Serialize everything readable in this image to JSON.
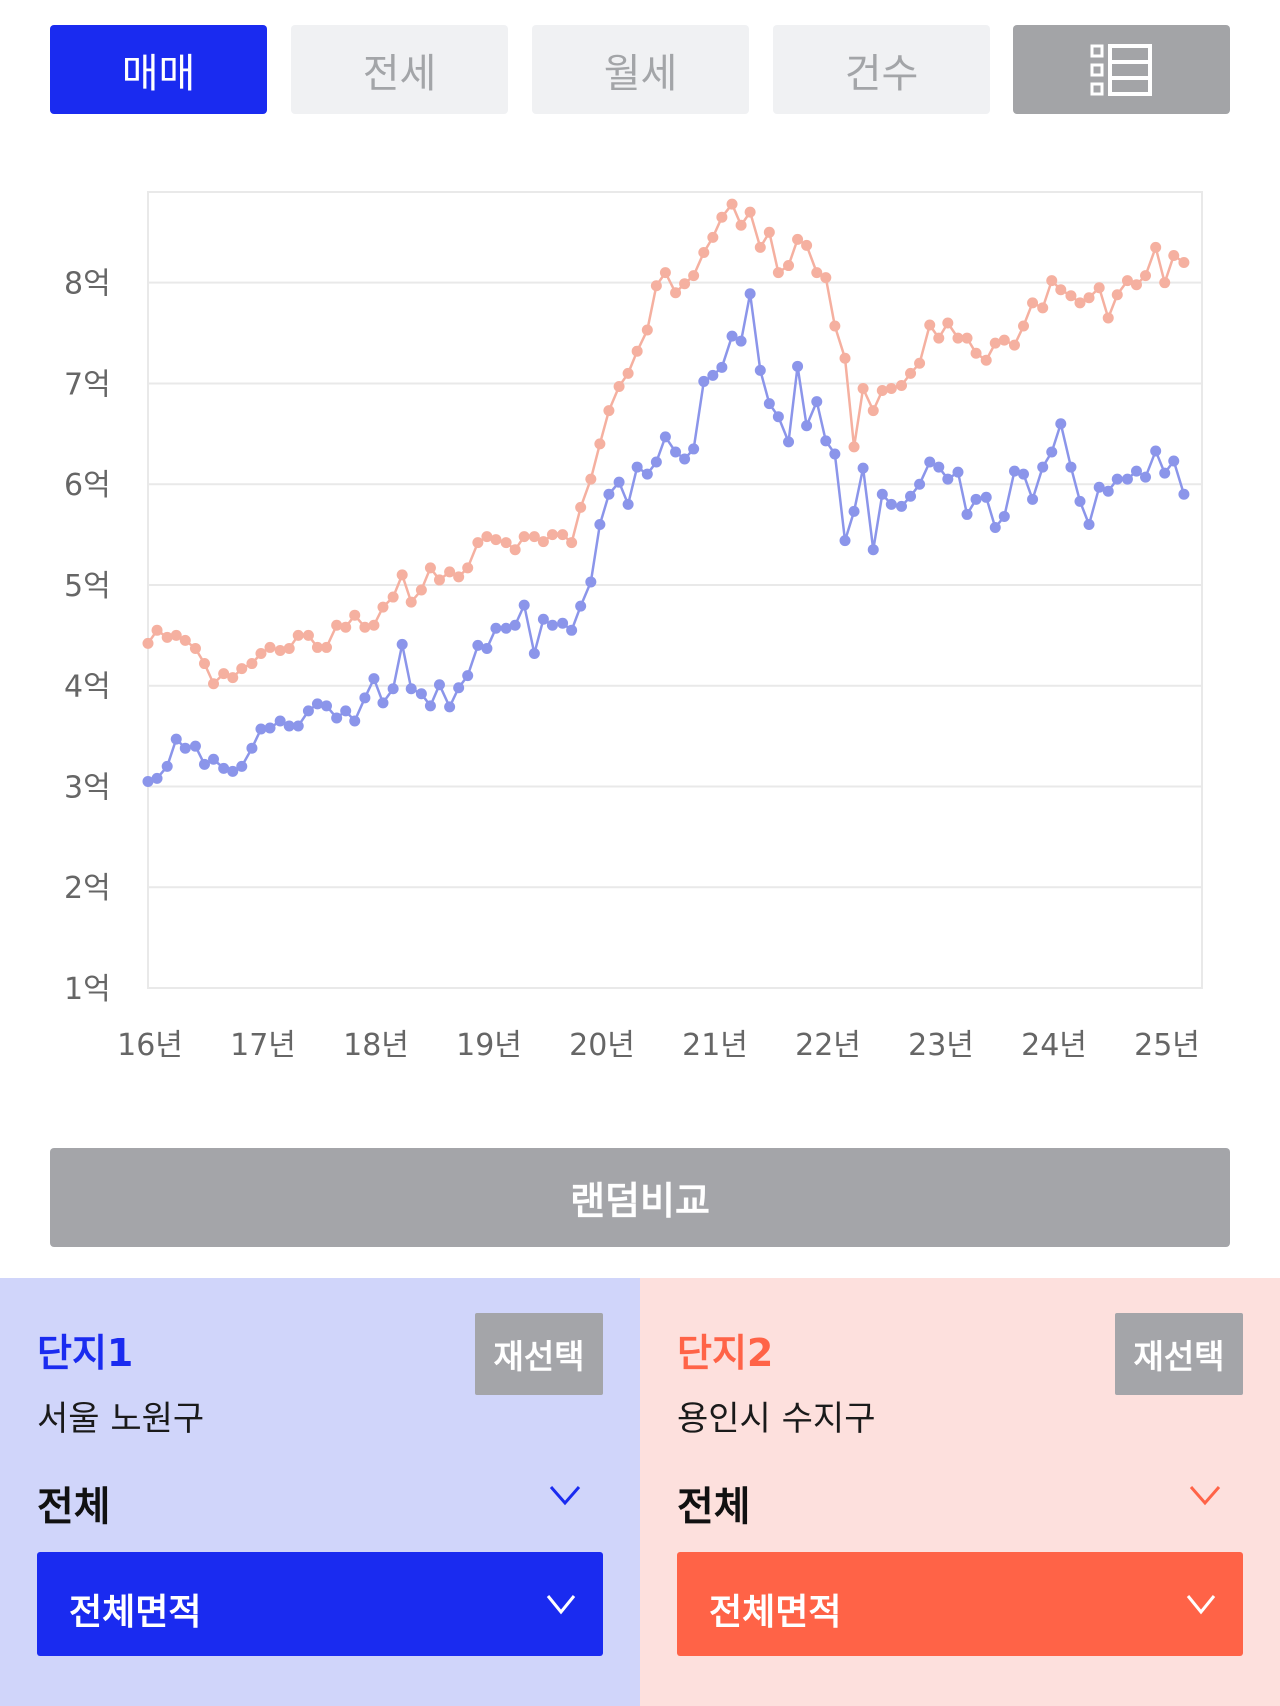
{
  "tabs": [
    {
      "label": "매매",
      "active": true
    },
    {
      "label": "전세",
      "active": false
    },
    {
      "label": "월세",
      "active": false
    },
    {
      "label": "건수",
      "active": false
    }
  ],
  "menu_icon": "list-view-icon",
  "colors": {
    "accent_blue": "#1a2bf0",
    "accent_red": "#ff6347",
    "series1_line": "#8b95ea",
    "series2_line": "#f5b0a0"
  },
  "chart_data": {
    "type": "line",
    "title": "",
    "xlabel": "",
    "ylabel": "",
    "x_tick_labels": [
      "16년",
      "17년",
      "18년",
      "19년",
      "20년",
      "21년",
      "22년",
      "23년",
      "24년",
      "25년"
    ],
    "y_tick_labels": [
      "1억",
      "2억",
      "3억",
      "4억",
      "5억",
      "6억",
      "7억",
      "8억"
    ],
    "ylim": [
      1,
      8.9
    ],
    "xlim": [
      2016.0,
      2025.33
    ],
    "grid": true,
    "legend": "none",
    "series": [
      {
        "color": "#8b95ea",
        "points": [
          [
            2016.0,
            3.05
          ],
          [
            2016.08,
            3.08
          ],
          [
            2016.17,
            3.2
          ],
          [
            2016.25,
            3.47
          ],
          [
            2016.33,
            3.38
          ],
          [
            2016.42,
            3.4
          ],
          [
            2016.5,
            3.22
          ],
          [
            2016.58,
            3.27
          ],
          [
            2016.67,
            3.18
          ],
          [
            2016.75,
            3.15
          ],
          [
            2016.83,
            3.2
          ],
          [
            2016.92,
            3.38
          ],
          [
            2017.0,
            3.57
          ],
          [
            2017.08,
            3.58
          ],
          [
            2017.17,
            3.65
          ],
          [
            2017.25,
            3.6
          ],
          [
            2017.33,
            3.6
          ],
          [
            2017.42,
            3.75
          ],
          [
            2017.5,
            3.82
          ],
          [
            2017.58,
            3.8
          ],
          [
            2017.67,
            3.68
          ],
          [
            2017.75,
            3.75
          ],
          [
            2017.83,
            3.65
          ],
          [
            2017.92,
            3.88
          ],
          [
            2018.0,
            4.07
          ],
          [
            2018.08,
            3.83
          ],
          [
            2018.17,
            3.97
          ],
          [
            2018.25,
            4.41
          ],
          [
            2018.33,
            3.97
          ],
          [
            2018.42,
            3.92
          ],
          [
            2018.5,
            3.8
          ],
          [
            2018.58,
            4.01
          ],
          [
            2018.67,
            3.79
          ],
          [
            2018.75,
            3.98
          ],
          [
            2018.83,
            4.1
          ],
          [
            2018.92,
            4.4
          ],
          [
            2019.0,
            4.37
          ],
          [
            2019.08,
            4.57
          ],
          [
            2019.17,
            4.57
          ],
          [
            2019.25,
            4.6
          ],
          [
            2019.33,
            4.8
          ],
          [
            2019.42,
            4.32
          ],
          [
            2019.5,
            4.66
          ],
          [
            2019.58,
            4.6
          ],
          [
            2019.67,
            4.62
          ],
          [
            2019.75,
            4.55
          ],
          [
            2019.83,
            4.79
          ],
          [
            2019.92,
            5.03
          ],
          [
            2020.0,
            5.6
          ],
          [
            2020.08,
            5.9
          ],
          [
            2020.17,
            6.02
          ],
          [
            2020.25,
            5.8
          ],
          [
            2020.33,
            6.17
          ],
          [
            2020.42,
            6.1
          ],
          [
            2020.5,
            6.22
          ],
          [
            2020.58,
            6.47
          ],
          [
            2020.67,
            6.32
          ],
          [
            2020.75,
            6.25
          ],
          [
            2020.83,
            6.35
          ],
          [
            2020.92,
            7.02
          ],
          [
            2021.0,
            7.08
          ],
          [
            2021.08,
            7.16
          ],
          [
            2021.17,
            7.47
          ],
          [
            2021.25,
            7.42
          ],
          [
            2021.33,
            7.89
          ],
          [
            2021.42,
            7.13
          ],
          [
            2021.5,
            6.8
          ],
          [
            2021.58,
            6.67
          ],
          [
            2021.67,
            6.42
          ],
          [
            2021.75,
            7.17
          ],
          [
            2021.83,
            6.58
          ],
          [
            2021.92,
            6.82
          ],
          [
            2022.0,
            6.43
          ],
          [
            2022.08,
            6.3
          ],
          [
            2022.17,
            5.44
          ],
          [
            2022.25,
            5.73
          ],
          [
            2022.33,
            6.16
          ],
          [
            2022.42,
            5.35
          ],
          [
            2022.5,
            5.9
          ],
          [
            2022.58,
            5.8
          ],
          [
            2022.67,
            5.78
          ],
          [
            2022.75,
            5.88
          ],
          [
            2022.83,
            6.0
          ],
          [
            2022.92,
            6.22
          ],
          [
            2023.0,
            6.17
          ],
          [
            2023.08,
            6.05
          ],
          [
            2023.17,
            6.12
          ],
          [
            2023.25,
            5.7
          ],
          [
            2023.33,
            5.85
          ],
          [
            2023.42,
            5.87
          ],
          [
            2023.5,
            5.57
          ],
          [
            2023.58,
            5.68
          ],
          [
            2023.67,
            6.13
          ],
          [
            2023.75,
            6.1
          ],
          [
            2023.83,
            5.85
          ],
          [
            2023.92,
            6.17
          ],
          [
            2024.0,
            6.32
          ],
          [
            2024.08,
            6.6
          ],
          [
            2024.17,
            6.17
          ],
          [
            2024.25,
            5.83
          ],
          [
            2024.33,
            5.6
          ],
          [
            2024.42,
            5.97
          ],
          [
            2024.5,
            5.93
          ],
          [
            2024.58,
            6.05
          ],
          [
            2024.67,
            6.05
          ],
          [
            2024.75,
            6.13
          ],
          [
            2024.83,
            6.07
          ],
          [
            2024.92,
            6.33
          ],
          [
            2025.0,
            6.11
          ],
          [
            2025.08,
            6.23
          ],
          [
            2025.17,
            5.9
          ]
        ]
      },
      {
        "color": "#f5b0a0",
        "points": [
          [
            2016.0,
            4.42
          ],
          [
            2016.08,
            4.55
          ],
          [
            2016.17,
            4.48
          ],
          [
            2016.25,
            4.5
          ],
          [
            2016.33,
            4.45
          ],
          [
            2016.42,
            4.37
          ],
          [
            2016.5,
            4.22
          ],
          [
            2016.58,
            4.02
          ],
          [
            2016.67,
            4.12
          ],
          [
            2016.75,
            4.08
          ],
          [
            2016.83,
            4.17
          ],
          [
            2016.92,
            4.22
          ],
          [
            2017.0,
            4.32
          ],
          [
            2017.08,
            4.38
          ],
          [
            2017.17,
            4.35
          ],
          [
            2017.25,
            4.37
          ],
          [
            2017.33,
            4.5
          ],
          [
            2017.42,
            4.5
          ],
          [
            2017.5,
            4.38
          ],
          [
            2017.58,
            4.38
          ],
          [
            2017.67,
            4.6
          ],
          [
            2017.75,
            4.58
          ],
          [
            2017.83,
            4.7
          ],
          [
            2017.92,
            4.58
          ],
          [
            2018.0,
            4.6
          ],
          [
            2018.08,
            4.78
          ],
          [
            2018.17,
            4.88
          ],
          [
            2018.25,
            5.1
          ],
          [
            2018.33,
            4.83
          ],
          [
            2018.42,
            4.95
          ],
          [
            2018.5,
            5.17
          ],
          [
            2018.58,
            5.05
          ],
          [
            2018.67,
            5.13
          ],
          [
            2018.75,
            5.08
          ],
          [
            2018.83,
            5.17
          ],
          [
            2018.92,
            5.42
          ],
          [
            2019.0,
            5.48
          ],
          [
            2019.08,
            5.45
          ],
          [
            2019.17,
            5.42
          ],
          [
            2019.25,
            5.35
          ],
          [
            2019.33,
            5.48
          ],
          [
            2019.42,
            5.48
          ],
          [
            2019.5,
            5.43
          ],
          [
            2019.58,
            5.5
          ],
          [
            2019.67,
            5.5
          ],
          [
            2019.75,
            5.42
          ],
          [
            2019.83,
            5.77
          ],
          [
            2019.92,
            6.05
          ],
          [
            2020.0,
            6.4
          ],
          [
            2020.08,
            6.73
          ],
          [
            2020.17,
            6.97
          ],
          [
            2020.25,
            7.1
          ],
          [
            2020.33,
            7.32
          ],
          [
            2020.42,
            7.53
          ],
          [
            2020.5,
            7.97
          ],
          [
            2020.58,
            8.1
          ],
          [
            2020.67,
            7.9
          ],
          [
            2020.75,
            7.99
          ],
          [
            2020.83,
            8.07
          ],
          [
            2020.92,
            8.3
          ],
          [
            2021.0,
            8.45
          ],
          [
            2021.08,
            8.65
          ],
          [
            2021.17,
            8.78
          ],
          [
            2021.25,
            8.57
          ],
          [
            2021.33,
            8.7
          ],
          [
            2021.42,
            8.35
          ],
          [
            2021.5,
            8.5
          ],
          [
            2021.58,
            8.1
          ],
          [
            2021.67,
            8.17
          ],
          [
            2021.75,
            8.43
          ],
          [
            2021.83,
            8.37
          ],
          [
            2021.92,
            8.1
          ],
          [
            2022.0,
            8.05
          ],
          [
            2022.08,
            7.57
          ],
          [
            2022.17,
            7.25
          ],
          [
            2022.25,
            6.37
          ],
          [
            2022.33,
            6.95
          ],
          [
            2022.42,
            6.73
          ],
          [
            2022.5,
            6.93
          ],
          [
            2022.58,
            6.95
          ],
          [
            2022.67,
            6.98
          ],
          [
            2022.75,
            7.1
          ],
          [
            2022.83,
            7.2
          ],
          [
            2022.92,
            7.58
          ],
          [
            2023.0,
            7.45
          ],
          [
            2023.08,
            7.6
          ],
          [
            2023.17,
            7.45
          ],
          [
            2023.25,
            7.45
          ],
          [
            2023.33,
            7.3
          ],
          [
            2023.42,
            7.23
          ],
          [
            2023.5,
            7.4
          ],
          [
            2023.58,
            7.43
          ],
          [
            2023.67,
            7.38
          ],
          [
            2023.75,
            7.57
          ],
          [
            2023.83,
            7.8
          ],
          [
            2023.92,
            7.75
          ],
          [
            2024.0,
            8.02
          ],
          [
            2024.08,
            7.93
          ],
          [
            2024.17,
            7.87
          ],
          [
            2024.25,
            7.8
          ],
          [
            2024.33,
            7.85
          ],
          [
            2024.42,
            7.95
          ],
          [
            2024.5,
            7.65
          ],
          [
            2024.58,
            7.88
          ],
          [
            2024.67,
            8.02
          ],
          [
            2024.75,
            7.98
          ],
          [
            2024.83,
            8.07
          ],
          [
            2024.92,
            8.35
          ],
          [
            2025.0,
            8.0
          ],
          [
            2025.08,
            8.27
          ],
          [
            2025.17,
            8.2
          ]
        ]
      }
    ]
  },
  "random_compare_label": "랜덤비교",
  "complex1": {
    "title": "단지1",
    "reselect_label": "재선택",
    "region": "서울 노원구",
    "type_value": "전체",
    "area_value": "전체면적"
  },
  "complex2": {
    "title": "단지2",
    "reselect_label": "재선택",
    "region": "용인시 수지구",
    "type_value": "전체",
    "area_value": "전체면적"
  }
}
